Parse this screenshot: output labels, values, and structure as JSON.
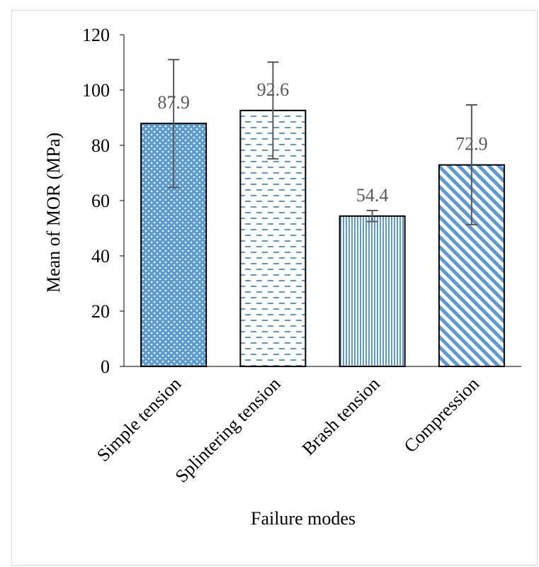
{
  "chart_data": {
    "type": "bar",
    "title": "",
    "xlabel": "Failure modes",
    "ylabel": "Mean of MOR (MPa)",
    "ylim": [
      0,
      120
    ],
    "yticks": [
      0,
      20,
      40,
      60,
      80,
      100,
      120
    ],
    "ytick_labels": [
      "0",
      "20",
      "40",
      "60",
      "80",
      "100",
      "120"
    ],
    "categories": [
      "Simple tension",
      "Splintering tension",
      "Brash tension",
      "Compression"
    ],
    "values": [
      87.9,
      92.6,
      54.4,
      72.9
    ],
    "value_labels": [
      "87.9",
      "92.6",
      "54.4",
      "72.9"
    ],
    "error_bars": [
      {
        "low": 64.7,
        "high": 111.0
      },
      {
        "low": 75.1,
        "high": 110.1
      },
      {
        "low": 52.4,
        "high": 56.4
      },
      {
        "low": 51.3,
        "high": 94.6
      }
    ],
    "patterns": [
      "dots",
      "dashes",
      "vertical-stripes",
      "diagonal-stripes"
    ],
    "legend": "none",
    "grid": false,
    "colors": {
      "bar_fill": "#5b9bd5",
      "bar_edge": "#000000",
      "error_bar": "#595959",
      "value_label": "#595959",
      "text": "#000000",
      "frame": "#d9d9d9"
    }
  }
}
